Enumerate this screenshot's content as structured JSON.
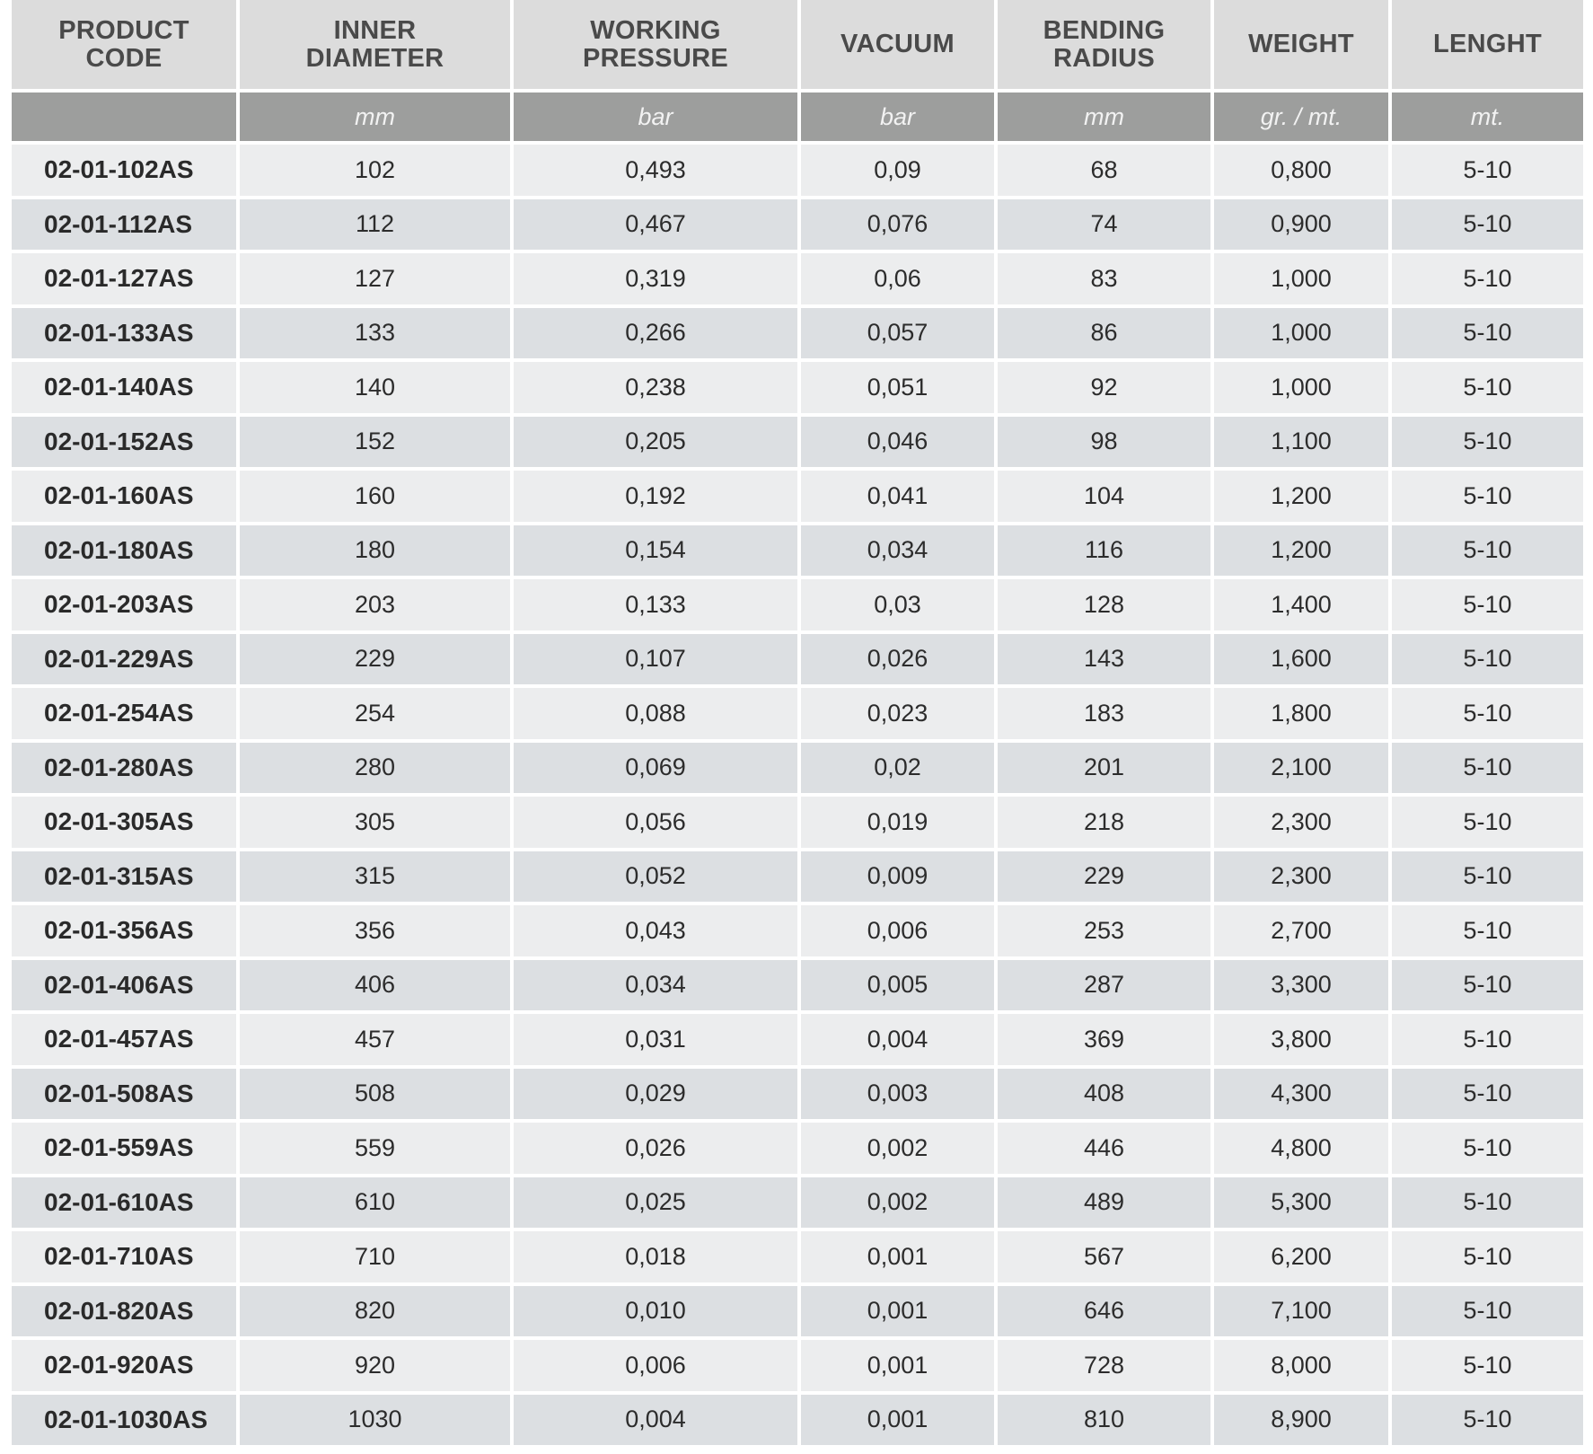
{
  "columns": [
    {
      "key": "code",
      "header_line1": "PRODUCT",
      "header_line2": "CODE",
      "unit": ""
    },
    {
      "key": "inner_diameter",
      "header_line1": "INNER",
      "header_line2": "DIAMETER",
      "unit": "mm"
    },
    {
      "key": "working_pressure",
      "header_line1": "WORKING",
      "header_line2": "PRESSURE",
      "unit": "bar"
    },
    {
      "key": "vacuum",
      "header_line1": "VACUUM",
      "header_line2": "",
      "unit": "bar"
    },
    {
      "key": "bending_radius",
      "header_line1": "BENDING",
      "header_line2": "RADIUS",
      "unit": "mm"
    },
    {
      "key": "weight",
      "header_line1": "WEIGHT",
      "header_line2": "",
      "unit": "gr. / mt."
    },
    {
      "key": "length",
      "header_line1": "LENGHT",
      "header_line2": "",
      "unit": "mt."
    }
  ],
  "rows": [
    [
      "02-01-102AS",
      "102",
      "0,493",
      "0,09",
      "68",
      "0,800",
      "5-10"
    ],
    [
      "02-01-112AS",
      "112",
      "0,467",
      "0,076",
      "74",
      "0,900",
      "5-10"
    ],
    [
      "02-01-127AS",
      "127",
      "0,319",
      "0,06",
      "83",
      "1,000",
      "5-10"
    ],
    [
      "02-01-133AS",
      "133",
      "0,266",
      "0,057",
      "86",
      "1,000",
      "5-10"
    ],
    [
      "02-01-140AS",
      "140",
      "0,238",
      "0,051",
      "92",
      "1,000",
      "5-10"
    ],
    [
      "02-01-152AS",
      "152",
      "0,205",
      "0,046",
      "98",
      "1,100",
      "5-10"
    ],
    [
      "02-01-160AS",
      "160",
      "0,192",
      "0,041",
      "104",
      "1,200",
      "5-10"
    ],
    [
      "02-01-180AS",
      "180",
      "0,154",
      "0,034",
      "116",
      "1,200",
      "5-10"
    ],
    [
      "02-01-203AS",
      "203",
      "0,133",
      "0,03",
      "128",
      "1,400",
      "5-10"
    ],
    [
      "02-01-229AS",
      "229",
      "0,107",
      "0,026",
      "143",
      "1,600",
      "5-10"
    ],
    [
      "02-01-254AS",
      "254",
      "0,088",
      "0,023",
      "183",
      "1,800",
      "5-10"
    ],
    [
      "02-01-280AS",
      "280",
      "0,069",
      "0,02",
      "201",
      "2,100",
      "5-10"
    ],
    [
      "02-01-305AS",
      "305",
      "0,056",
      "0,019",
      "218",
      "2,300",
      "5-10"
    ],
    [
      "02-01-315AS",
      "315",
      "0,052",
      "0,009",
      "229",
      "2,300",
      "5-10"
    ],
    [
      "02-01-356AS",
      "356",
      "0,043",
      "0,006",
      "253",
      "2,700",
      "5-10"
    ],
    [
      "02-01-406AS",
      "406",
      "0,034",
      "0,005",
      "287",
      "3,300",
      "5-10"
    ],
    [
      "02-01-457AS",
      "457",
      "0,031",
      "0,004",
      "369",
      "3,800",
      "5-10"
    ],
    [
      "02-01-508AS",
      "508",
      "0,029",
      "0,003",
      "408",
      "4,300",
      "5-10"
    ],
    [
      "02-01-559AS",
      "559",
      "0,026",
      "0,002",
      "446",
      "4,800",
      "5-10"
    ],
    [
      "02-01-610AS",
      "610",
      "0,025",
      "0,002",
      "489",
      "5,300",
      "5-10"
    ],
    [
      "02-01-710AS",
      "710",
      "0,018",
      "0,001",
      "567",
      "6,200",
      "5-10"
    ],
    [
      "02-01-820AS",
      "820",
      "0,010",
      "0,001",
      "646",
      "7,100",
      "5-10"
    ],
    [
      "02-01-920AS",
      "920",
      "0,006",
      "0,001",
      "728",
      "8,000",
      "5-10"
    ],
    [
      "02-01-1030AS",
      "1030",
      "0,004",
      "0,001",
      "810",
      "8,900",
      "5-10"
    ]
  ]
}
